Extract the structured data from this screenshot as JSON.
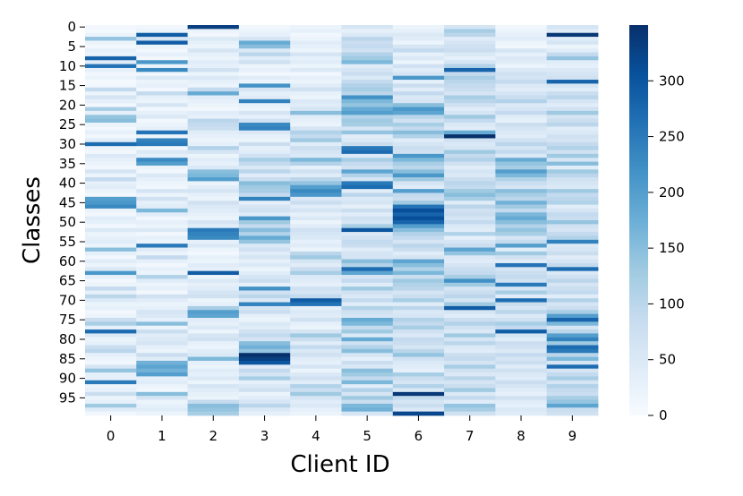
{
  "chart_data": {
    "type": "heatmap",
    "xlabel": "Client ID",
    "ylabel": "Classes",
    "x_categories": [
      "0",
      "1",
      "2",
      "3",
      "4",
      "5",
      "6",
      "7",
      "8",
      "9"
    ],
    "y_tick_labels": [
      "0",
      "5",
      "10",
      "15",
      "20",
      "25",
      "30",
      "35",
      "40",
      "45",
      "50",
      "55",
      "60",
      "65",
      "70",
      "75",
      "80",
      "85",
      "90",
      "95"
    ],
    "y_tick_step": 5,
    "num_classes": 100,
    "colorbar": {
      "min": 0,
      "max": 350,
      "ticks": [
        0,
        50,
        100,
        150,
        200,
        250,
        300
      ]
    },
    "colormap": [
      "#f7fbff",
      "#deebf7",
      "#c6dbef",
      "#9ecae1",
      "#6baed6",
      "#4292c6",
      "#2171b5",
      "#08519c",
      "#08306b"
    ],
    "columns": [
      [
        10,
        5,
        20,
        140,
        20,
        10,
        30,
        20,
        280,
        40,
        260,
        30,
        10,
        20,
        5,
        10,
        90,
        20,
        60,
        30,
        10,
        120,
        30,
        140,
        150,
        20,
        10,
        30,
        10,
        40,
        270,
        20,
        10,
        50,
        30,
        20,
        10,
        60,
        20,
        90,
        30,
        40,
        20,
        10,
        200,
        210,
        230,
        20,
        10,
        40,
        30,
        10,
        50,
        20,
        30,
        40,
        20,
        150,
        30,
        10,
        40,
        20,
        50,
        210,
        30,
        10,
        20,
        90,
        30,
        100,
        50,
        20,
        30,
        10,
        20,
        80,
        120,
        30,
        270,
        50,
        20,
        30,
        80,
        100,
        30,
        20,
        10,
        60,
        140,
        30,
        30,
        250,
        20,
        30,
        80,
        20,
        30,
        130,
        40,
        10
      ],
      [
        10,
        20,
        290,
        60,
        290,
        20,
        10,
        30,
        10,
        210,
        20,
        230,
        10,
        50,
        20,
        30,
        10,
        90,
        30,
        20,
        60,
        10,
        30,
        50,
        10,
        20,
        30,
        260,
        20,
        240,
        250,
        10,
        50,
        30,
        230,
        200,
        20,
        10,
        50,
        30,
        20,
        10,
        60,
        20,
        70,
        30,
        40,
        160,
        40,
        10,
        30,
        20,
        50,
        10,
        30,
        20,
        250,
        40,
        20,
        90,
        30,
        10,
        30,
        20,
        110,
        40,
        20,
        30,
        10,
        70,
        40,
        20,
        30,
        60,
        50,
        30,
        150,
        20,
        80,
        40,
        50,
        60,
        30,
        20,
        80,
        40,
        170,
        190,
        170,
        200,
        30,
        40,
        20,
        10,
        150,
        60,
        20,
        30,
        40,
        20
      ],
      [
        330,
        20,
        10,
        50,
        30,
        20,
        60,
        30,
        20,
        40,
        30,
        70,
        20,
        50,
        30,
        20,
        90,
        180,
        40,
        30,
        20,
        10,
        40,
        30,
        100,
        90,
        80,
        40,
        30,
        20,
        30,
        110,
        60,
        20,
        40,
        30,
        50,
        150,
        160,
        200,
        20,
        40,
        60,
        30,
        20,
        70,
        50,
        40,
        30,
        20,
        60,
        40,
        250,
        240,
        230,
        30,
        50,
        20,
        10,
        30,
        20,
        40,
        30,
        290,
        20,
        50,
        30,
        40,
        60,
        70,
        20,
        30,
        120,
        200,
        190,
        40,
        30,
        50,
        20,
        60,
        70,
        30,
        20,
        40,
        50,
        160,
        30,
        20,
        40,
        30,
        50,
        20,
        60,
        40,
        30,
        20,
        90,
        150,
        140,
        120
      ],
      [
        10,
        20,
        30,
        60,
        180,
        150,
        50,
        100,
        40,
        70,
        20,
        30,
        10,
        40,
        20,
        220,
        60,
        30,
        40,
        240,
        30,
        20,
        60,
        30,
        70,
        230,
        240,
        50,
        30,
        20,
        80,
        30,
        40,
        70,
        120,
        90,
        50,
        100,
        40,
        80,
        150,
        130,
        120,
        90,
        240,
        30,
        60,
        70,
        40,
        210,
        130,
        90,
        150,
        110,
        180,
        140,
        50,
        70,
        40,
        60,
        30,
        50,
        20,
        40,
        60,
        80,
        30,
        220,
        70,
        100,
        50,
        240,
        60,
        80,
        30,
        20,
        50,
        40,
        70,
        90,
        60,
        150,
        170,
        140,
        350,
        330,
        300,
        40,
        90,
        60,
        120,
        30,
        50,
        70,
        20,
        40,
        60,
        100,
        50,
        30
      ],
      [
        20,
        30,
        10,
        20,
        40,
        30,
        20,
        60,
        30,
        40,
        20,
        50,
        10,
        30,
        20,
        40,
        70,
        30,
        20,
        50,
        40,
        60,
        150,
        40,
        30,
        20,
        60,
        110,
        90,
        130,
        40,
        80,
        60,
        50,
        160,
        110,
        30,
        70,
        40,
        100,
        140,
        200,
        230,
        210,
        50,
        80,
        40,
        60,
        30,
        50,
        20,
        40,
        70,
        60,
        50,
        30,
        40,
        20,
        100,
        130,
        60,
        40,
        80,
        120,
        50,
        40,
        30,
        70,
        60,
        90,
        290,
        260,
        30,
        50,
        40,
        70,
        30,
        20,
        60,
        130,
        80,
        40,
        90,
        50,
        70,
        40,
        30,
        60,
        20,
        50,
        70,
        40,
        110,
        80,
        130,
        60,
        40,
        50,
        30,
        20
      ],
      [
        60,
        30,
        50,
        100,
        80,
        90,
        70,
        110,
        130,
        160,
        40,
        60,
        80,
        50,
        90,
        110,
        120,
        100,
        220,
        160,
        140,
        180,
        200,
        110,
        130,
        120,
        60,
        140,
        40,
        50,
        80,
        250,
        270,
        50,
        120,
        90,
        70,
        190,
        110,
        60,
        250,
        270,
        40,
        100,
        50,
        60,
        30,
        80,
        40,
        70,
        60,
        120,
        300,
        50,
        70,
        90,
        80,
        40,
        60,
        60,
        150,
        110,
        270,
        190,
        60,
        90,
        40,
        130,
        70,
        50,
        90,
        40,
        110,
        70,
        60,
        180,
        160,
        90,
        130,
        50,
        180,
        70,
        110,
        150,
        60,
        30,
        80,
        50,
        150,
        130,
        90,
        160,
        40,
        110,
        60,
        130,
        80,
        160,
        170,
        60
      ],
      [
        20,
        30,
        50,
        40,
        20,
        60,
        90,
        30,
        50,
        20,
        70,
        40,
        60,
        210,
        30,
        80,
        40,
        90,
        50,
        60,
        150,
        210,
        190,
        100,
        70,
        120,
        90,
        150,
        110,
        40,
        60,
        80,
        70,
        210,
        160,
        120,
        100,
        150,
        210,
        130,
        60,
        40,
        200,
        90,
        80,
        130,
        260,
        310,
        280,
        310,
        280,
        200,
        150,
        110,
        90,
        60,
        100,
        80,
        40,
        60,
        190,
        150,
        110,
        160,
        80,
        130,
        110,
        100,
        60,
        80,
        120,
        40,
        100,
        50,
        60,
        110,
        90,
        120,
        70,
        50,
        90,
        80,
        60,
        100,
        140,
        70,
        50,
        40,
        30,
        120,
        80,
        60,
        110,
        50,
        340,
        90,
        60,
        80,
        50,
        320
      ],
      [
        60,
        120,
        100,
        40,
        60,
        70,
        80,
        50,
        30,
        60,
        110,
        280,
        90,
        120,
        100,
        90,
        80,
        60,
        120,
        100,
        70,
        40,
        60,
        130,
        90,
        50,
        40,
        180,
        360,
        70,
        50,
        60,
        130,
        90,
        110,
        70,
        40,
        60,
        50,
        80,
        100,
        90,
        130,
        150,
        120,
        40,
        100,
        70,
        80,
        60,
        90,
        50,
        40,
        110,
        30,
        60,
        80,
        190,
        140,
        50,
        40,
        60,
        80,
        90,
        120,
        220,
        130,
        60,
        80,
        100,
        60,
        130,
        290,
        60,
        40,
        80,
        110,
        70,
        50,
        130,
        60,
        100,
        50,
        40,
        80,
        90,
        60,
        120,
        70,
        50,
        100,
        60,
        80,
        130,
        50,
        90,
        40,
        140,
        120,
        70
      ],
      [
        10,
        20,
        30,
        40,
        20,
        10,
        60,
        30,
        50,
        40,
        20,
        50,
        70,
        60,
        90,
        50,
        40,
        60,
        80,
        110,
        50,
        60,
        90,
        40,
        30,
        80,
        60,
        50,
        40,
        70,
        100,
        60,
        90,
        50,
        180,
        140,
        120,
        200,
        160,
        110,
        80,
        60,
        150,
        120,
        100,
        170,
        130,
        90,
        160,
        180,
        150,
        110,
        140,
        120,
        60,
        90,
        200,
        40,
        130,
        70,
        40,
        260,
        60,
        80,
        90,
        70,
        250,
        60,
        120,
        40,
        270,
        80,
        60,
        100,
        50,
        70,
        120,
        90,
        290,
        60,
        40,
        80,
        70,
        50,
        90,
        60,
        80,
        40,
        70,
        50,
        40,
        80,
        60,
        40,
        30,
        70,
        40,
        30,
        50,
        40
      ],
      [
        60,
        40,
        340,
        40,
        60,
        20,
        40,
        90,
        140,
        40,
        30,
        50,
        60,
        70,
        280,
        60,
        40,
        80,
        100,
        60,
        40,
        70,
        130,
        60,
        80,
        100,
        40,
        50,
        70,
        60,
        90,
        110,
        70,
        130,
        60,
        150,
        40,
        130,
        100,
        70,
        60,
        50,
        130,
        90,
        100,
        110,
        40,
        60,
        90,
        80,
        140,
        70,
        60,
        90,
        110,
        240,
        50,
        60,
        80,
        40,
        60,
        90,
        270,
        50,
        70,
        100,
        60,
        80,
        90,
        40,
        110,
        60,
        80,
        120,
        200,
        280,
        160,
        60,
        100,
        200,
        240,
        130,
        270,
        250,
        100,
        160,
        60,
        270,
        60,
        90,
        120,
        60,
        110,
        90,
        80,
        120,
        140,
        190,
        80,
        70
      ]
    ]
  }
}
